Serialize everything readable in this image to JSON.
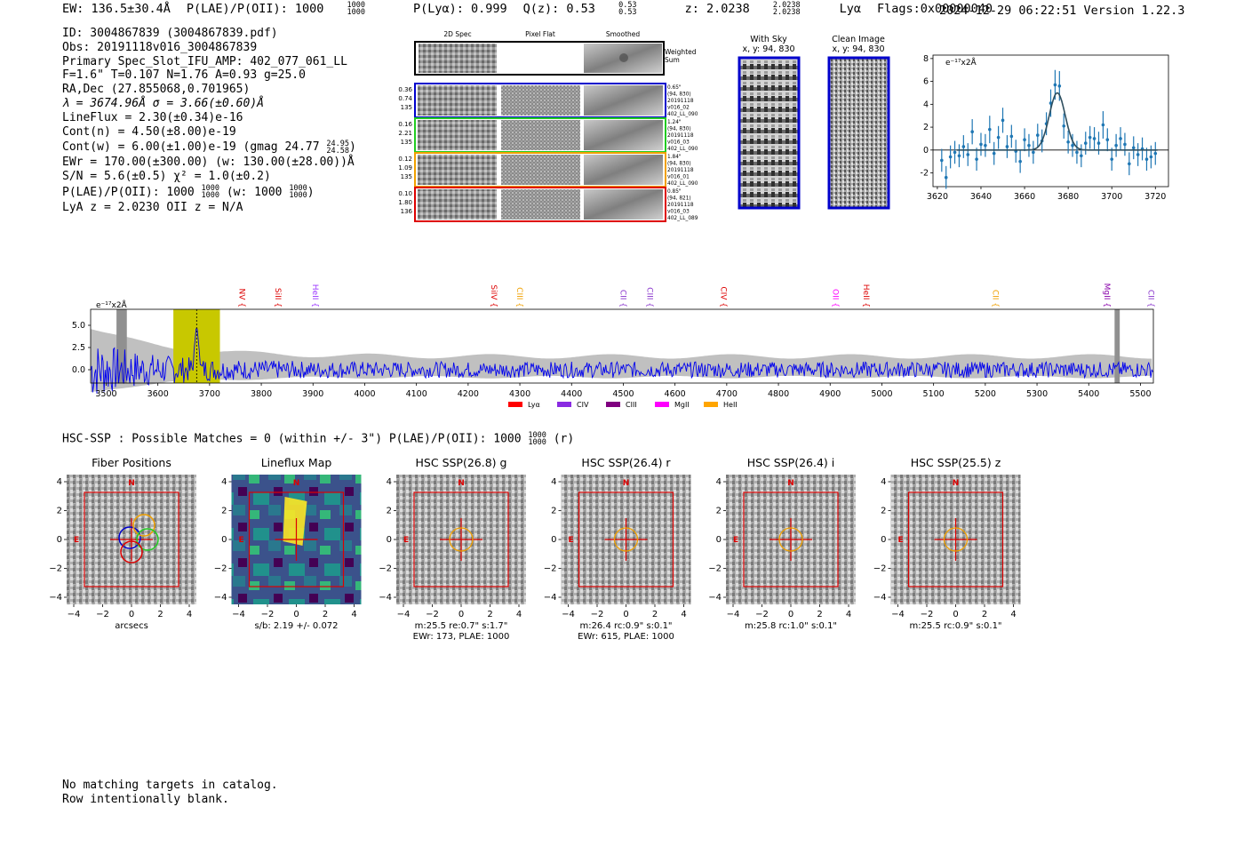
{
  "header": {
    "ew": "EW: 136.5±30.4Å",
    "plae": "P(LAE)/P(OII): 1000",
    "plae_hi": "1000",
    "plae_lo": "1000",
    "plya": "P(Lyα): 0.999",
    "qz": "Q(z): 0.53",
    "qz_hi": "0.53",
    "qz_lo": "0.53",
    "z": "z: 2.0238",
    "z_hi": "2.0238",
    "z_lo": "2.0238",
    "line": "Lyα",
    "flags": "Flags:0x00000040",
    "timestamp": "2024-12-29 06:22:51  Version 1.22.3"
  },
  "info": {
    "id": "ID: 3004867839 (3004867839.pdf)",
    "obs": "Obs: 20191118v016_3004867839",
    "primary": "Primary Spec_Slot_IFU_AMP: 402_077_061_LL",
    "fiber": "F=1.6\"  T=0.107  N=1.76  A=0.93  g=25.0",
    "radec": "RA,Dec (27.855068,0.701965)",
    "lambda": "λ = 3674.96Å  σ = 3.66(±0.60)Å",
    "lineflux": "LineFlux = 2.30(±0.34)e-16",
    "contn": "Cont(n) = 4.50(±8.00)e-19",
    "contw": "Cont(w) = 6.00(±1.00)e-19 (gmag 24.77",
    "contw_hi": "24.95",
    "contw_lo": "24.58",
    "contw_end": ")",
    "ewr": "EWr = 170.00(±300.00) (w: 130.00(±28.00))Å",
    "sn": "S/N = 5.6(±0.5)  χ² = 1.0(±0.2)",
    "plae": "P(LAE)/P(OII): 1000",
    "plae_hi": "1000",
    "plae_lo": "1000",
    "plae_w": " (w: 1000",
    "plae_w_hi": "1000",
    "plae_w_lo": "1000",
    "plae_w_end": ")",
    "lyaz": "LyA z = 2.0230  OII z = N/A"
  },
  "cutouts": {
    "col_labels": [
      "2D Spec",
      "Pixel Flat",
      "Smoothed"
    ],
    "weighted_label": [
      "Weighted",
      "Sum"
    ],
    "rows": [
      {
        "color": "#0000cc",
        "left": [
          "0.36",
          "0.74",
          "135"
        ],
        "right": [
          "0.65\"",
          "(94, 830)",
          "20191118",
          "v016_02",
          "402_LL_090"
        ]
      },
      {
        "color": "#22cc22",
        "left": [
          "0.16",
          "2.21",
          "135"
        ],
        "right": [
          "1.24\"",
          "(94, 830)",
          "20191118",
          "v016_03",
          "402_LL_090"
        ]
      },
      {
        "color": "#f0a000",
        "left": [
          "0.12",
          "1.09",
          "135"
        ],
        "right": [
          "1.84\"",
          "(94, 830)",
          "20191118",
          "v016_01",
          "402_LL_090"
        ]
      },
      {
        "color": "#dd0000",
        "left": [
          "0.10",
          "1.80",
          "136"
        ],
        "right": [
          "0.85\"",
          "(94, 821)",
          "20191118",
          "v016_03",
          "402_LL_089"
        ]
      }
    ],
    "with_sky": {
      "title": "With Sky",
      "subtitle": "x, y: 94, 830"
    },
    "clean": {
      "title": "Clean Image",
      "subtitle": "x, y: 94, 830"
    }
  },
  "line_fit": {
    "unit": "e⁻¹⁷x2Å",
    "type": "scatter",
    "xlim": [
      3618,
      3726
    ],
    "ylim": [
      -3.2,
      8.3
    ],
    "xticks": [
      3620,
      3640,
      3660,
      3680,
      3700,
      3720
    ],
    "yticks": [
      -2,
      0,
      2,
      4,
      6,
      8
    ],
    "x": [
      3630,
      3632,
      3634,
      3636,
      3638,
      3640,
      3642,
      3644,
      3646,
      3648,
      3650,
      3652,
      3654,
      3656,
      3658,
      3660,
      3662,
      3664,
      3666,
      3668,
      3670,
      3672,
      3674,
      3676,
      3678,
      3680,
      3682,
      3684,
      3686,
      3688,
      3690,
      3692,
      3694,
      3696,
      3698,
      3700,
      3702,
      3704,
      3706,
      3708,
      3710,
      3712,
      3714,
      3716,
      3718,
      3720,
      3622,
      3624,
      3626,
      3628
    ],
    "y": [
      -0.5,
      0.3,
      -0.4,
      1.6,
      -0.8,
      0.5,
      0.4,
      1.8,
      -0.3,
      1.1,
      2.6,
      0.3,
      1.2,
      -0.1,
      -1.0,
      0.9,
      0.4,
      -0.2,
      1.3,
      0.8,
      2.3,
      4.1,
      5.7,
      5.6,
      2.1,
      0.7,
      0.4,
      -0.2,
      -0.5,
      0.6,
      1.1,
      1.0,
      0.6,
      2.2,
      0.9,
      -0.8,
      0.4,
      1.0,
      0.5,
      -1.2,
      0.2,
      -0.4,
      0.1,
      -0.8,
      -0.6,
      -0.3,
      -0.9,
      -2.4,
      -0.6,
      -0.2
    ],
    "err": [
      1.0,
      1.0,
      1.0,
      1.1,
      1.0,
      1.0,
      1.0,
      1.2,
      1.0,
      1.0,
      1.1,
      1.0,
      1.0,
      1.0,
      1.0,
      1.0,
      1.0,
      1.0,
      1.0,
      1.0,
      1.0,
      1.2,
      1.3,
      1.3,
      1.1,
      1.0,
      1.0,
      1.0,
      1.0,
      1.0,
      1.0,
      1.0,
      1.0,
      1.2,
      1.0,
      1.0,
      1.0,
      1.0,
      1.0,
      1.0,
      1.0,
      1.0,
      1.0,
      1.0,
      1.0,
      1.0,
      1.0,
      1.0,
      1.0,
      1.0
    ],
    "model": {
      "center": 3675.0,
      "sigma": 3.66,
      "amplitude": 5.0,
      "baseline": 0.0
    }
  },
  "spectrum": {
    "type": "line",
    "unit": "e⁻¹⁷x2Å",
    "xlim": [
      3470,
      5525
    ],
    "ylim": [
      -1.5,
      6.8
    ],
    "xticks": [
      3500,
      3600,
      3700,
      3800,
      3900,
      4000,
      4100,
      4200,
      4300,
      4400,
      4500,
      4600,
      4700,
      4800,
      4900,
      5000,
      5100,
      5200,
      5300,
      5400,
      5500
    ],
    "yticks": [
      0.0,
      2.5,
      5.0
    ],
    "highlight": [
      3630,
      3720
    ],
    "fit_center": 3675,
    "masked": [
      [
        3520,
        3540
      ],
      [
        5450,
        5460
      ]
    ],
    "lines": [
      {
        "name": "NV",
        "wave": 3753,
        "color": "#dd0000"
      },
      {
        "name": "SiII",
        "wave": 3822,
        "color": "#dd0000"
      },
      {
        "name": "HeII",
        "wave": 3894,
        "color": "#9933ff"
      },
      {
        "name": "SiIV",
        "wave": 4240,
        "color": "#dd0000"
      },
      {
        "name": "CIII",
        "wave": 4290,
        "color": "#f0a000"
      },
      {
        "name": "CII",
        "wave": 4490,
        "color": "#8833cc"
      },
      {
        "name": "CIII",
        "wave": 4541,
        "color": "#8833cc"
      },
      {
        "name": "CIV",
        "wave": 4684,
        "color": "#dd0000"
      },
      {
        "name": "OII",
        "wave": 4900,
        "color": "#ff00ff"
      },
      {
        "name": "HeII",
        "wave": 4960,
        "color": "#dd0000"
      },
      {
        "name": "CII",
        "wave": 5210,
        "color": "#f0a000"
      },
      {
        "name": "MgII",
        "wave": 5425,
        "color": "#8800aa"
      },
      {
        "name": "CII",
        "wave": 5510,
        "color": "#8833cc"
      }
    ],
    "legend": [
      {
        "name": "Lyα",
        "color": "#ff0000"
      },
      {
        "name": "CIV",
        "color": "#8a2be2"
      },
      {
        "name": "CIII",
        "color": "#800080"
      },
      {
        "name": "MgII",
        "color": "#ff00ff"
      },
      {
        "name": "HeII",
        "color": "#ffa500"
      }
    ]
  },
  "hsc": {
    "header": "HSC-SSP : Possible Matches = 0 (within +/- 3\")  P(LAE)/P(OII): 1000",
    "header_hi": "1000",
    "header_lo": "1000",
    "header_end": " (r)",
    "axis_ticks": [
      "−4",
      "−2",
      "0",
      "2",
      "4"
    ],
    "panels": [
      {
        "title": "Fiber Positions",
        "captions": [
          "arcsecs"
        ]
      },
      {
        "title": "Lineflux Map",
        "captions": [
          "s/b: 2.19 +/- 0.072"
        ]
      },
      {
        "title": "HSC SSP(26.8) g",
        "captions": [
          "m:25.5  re:0.7\"  s:1.7\"",
          "EWr: 173, PLAE: 1000"
        ]
      },
      {
        "title": "HSC SSP(26.4) r",
        "captions": [
          "m:26.4 rc:0.9\"  s:0.1\"",
          "EWr: 615, PLAE: 1000"
        ]
      },
      {
        "title": "HSC SSP(26.4) i",
        "captions": [
          "m:25.8 rc:1.0\"  s:0.1\""
        ]
      },
      {
        "title": "HSC SSP(25.5) z",
        "captions": [
          "m:25.5 rc:0.9\"  s:0.1\""
        ]
      }
    ],
    "compass": {
      "n": "N",
      "e": "E"
    }
  },
  "footer": {
    "line1": "No matching targets in catalog.",
    "line2": "Row intentionally blank."
  }
}
